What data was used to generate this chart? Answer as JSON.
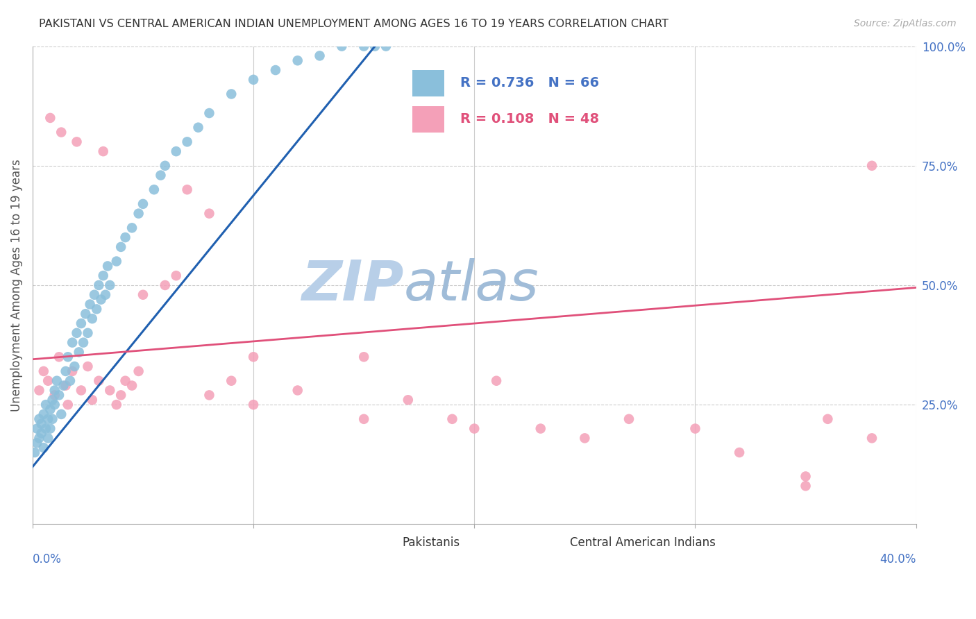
{
  "title": "PAKISTANI VS CENTRAL AMERICAN INDIAN UNEMPLOYMENT AMONG AGES 16 TO 19 YEARS CORRELATION CHART",
  "source": "Source: ZipAtlas.com",
  "ylabel": "Unemployment Among Ages 16 to 19 years",
  "xmin": 0.0,
  "xmax": 0.4,
  "ymin": 0.0,
  "ymax": 1.0,
  "blue_R": 0.736,
  "blue_N": 66,
  "pink_R": 0.108,
  "pink_N": 48,
  "blue_color": "#8abfdb",
  "pink_color": "#f4a0b8",
  "blue_line_color": "#2060b0",
  "pink_line_color": "#e0507a",
  "legend_label_blue": "Pakistanis",
  "legend_label_pink": "Central American Indians",
  "axis_label_color": "#4472c4",
  "watermark_zip": "ZIP",
  "watermark_atlas": "atlas",
  "watermark_color": "#c8d8f0",
  "blue_line_x0": 0.0,
  "blue_line_y0": 0.12,
  "blue_line_x1": 0.155,
  "blue_line_y1": 1.0,
  "pink_line_x0": 0.0,
  "pink_line_y0": 0.345,
  "pink_line_x1": 0.4,
  "pink_line_y1": 0.495,
  "blue_x": [
    0.001,
    0.002,
    0.002,
    0.003,
    0.003,
    0.004,
    0.004,
    0.005,
    0.005,
    0.006,
    0.006,
    0.007,
    0.007,
    0.008,
    0.008,
    0.009,
    0.009,
    0.01,
    0.01,
    0.011,
    0.012,
    0.013,
    0.014,
    0.015,
    0.016,
    0.017,
    0.018,
    0.019,
    0.02,
    0.021,
    0.022,
    0.023,
    0.024,
    0.025,
    0.026,
    0.027,
    0.028,
    0.029,
    0.03,
    0.031,
    0.032,
    0.033,
    0.034,
    0.035,
    0.038,
    0.04,
    0.042,
    0.045,
    0.048,
    0.05,
    0.055,
    0.058,
    0.06,
    0.065,
    0.07,
    0.075,
    0.08,
    0.09,
    0.1,
    0.11,
    0.12,
    0.13,
    0.14,
    0.15,
    0.155,
    0.16
  ],
  "blue_y": [
    0.15,
    0.17,
    0.2,
    0.18,
    0.22,
    0.19,
    0.21,
    0.16,
    0.23,
    0.2,
    0.25,
    0.22,
    0.18,
    0.24,
    0.2,
    0.26,
    0.22,
    0.28,
    0.25,
    0.3,
    0.27,
    0.23,
    0.29,
    0.32,
    0.35,
    0.3,
    0.38,
    0.33,
    0.4,
    0.36,
    0.42,
    0.38,
    0.44,
    0.4,
    0.46,
    0.43,
    0.48,
    0.45,
    0.5,
    0.47,
    0.52,
    0.48,
    0.54,
    0.5,
    0.55,
    0.58,
    0.6,
    0.62,
    0.65,
    0.67,
    0.7,
    0.73,
    0.75,
    0.78,
    0.8,
    0.83,
    0.86,
    0.9,
    0.93,
    0.95,
    0.97,
    0.98,
    1.0,
    1.0,
    1.0,
    1.0
  ],
  "pink_x": [
    0.003,
    0.005,
    0.007,
    0.008,
    0.01,
    0.012,
    0.013,
    0.015,
    0.016,
    0.018,
    0.02,
    0.022,
    0.025,
    0.027,
    0.03,
    0.032,
    0.035,
    0.038,
    0.04,
    0.042,
    0.045,
    0.048,
    0.05,
    0.06,
    0.065,
    0.07,
    0.08,
    0.09,
    0.1,
    0.12,
    0.15,
    0.17,
    0.19,
    0.21,
    0.23,
    0.25,
    0.27,
    0.3,
    0.32,
    0.35,
    0.36,
    0.38,
    0.38,
    0.35,
    0.2,
    0.15,
    0.1,
    0.08
  ],
  "pink_y": [
    0.28,
    0.32,
    0.3,
    0.85,
    0.27,
    0.35,
    0.82,
    0.29,
    0.25,
    0.32,
    0.8,
    0.28,
    0.33,
    0.26,
    0.3,
    0.78,
    0.28,
    0.25,
    0.27,
    0.3,
    0.29,
    0.32,
    0.48,
    0.5,
    0.52,
    0.7,
    0.65,
    0.3,
    0.35,
    0.28,
    0.35,
    0.26,
    0.22,
    0.3,
    0.2,
    0.18,
    0.22,
    0.2,
    0.15,
    0.1,
    0.22,
    0.18,
    0.75,
    0.08,
    0.2,
    0.22,
    0.25,
    0.27
  ]
}
